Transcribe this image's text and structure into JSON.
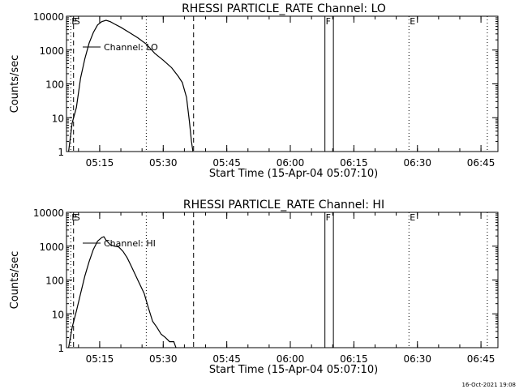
{
  "chart_data": [
    {
      "type": "line",
      "title": "RHESSI PARTICLE_RATE Channel: LO",
      "xlabel": "Start Time (15-Apr-04 05:07:10)",
      "ylabel": "Counts/sec",
      "y_scale": "log",
      "ylim": [
        1,
        10000
      ],
      "xlim": [
        "05:07:10",
        "06:49:00"
      ],
      "x_tick_labels": [
        "05:15",
        "05:30",
        "05:45",
        "06:00",
        "06:15",
        "06:30",
        "06:45"
      ],
      "y_tick_labels": [
        "1",
        "10",
        "100",
        "1000",
        "10000"
      ],
      "legend": "Channel: LO",
      "legend_position": "top-left",
      "series": [
        {
          "name": "Channel: LO",
          "x": [
            "05:07:40",
            "05:08:30",
            "05:09:30",
            "05:10:30",
            "05:11:30",
            "05:12:30",
            "05:13:30",
            "05:14:30",
            "05:15:30",
            "05:16:30",
            "05:17:30",
            "05:18:30",
            "05:20:00",
            "05:22:00",
            "05:24:00",
            "05:26:00",
            "05:28:00",
            "05:30:00",
            "05:32:00",
            "05:33:30",
            "05:34:30",
            "05:35:30",
            "05:36:10",
            "05:36:40",
            "05:37:00"
          ],
          "y": [
            1,
            7,
            20,
            150,
            550,
            1600,
            3300,
            5500,
            6900,
            7600,
            6900,
            5900,
            4700,
            3300,
            2300,
            1500,
            800,
            500,
            300,
            170,
            110,
            40,
            8,
            2,
            1
          ]
        }
      ],
      "annotations": [
        {
          "label": "F",
          "x": "06:08:10",
          "style": "solid"
        },
        {
          "label": "E",
          "x": "06:28:00",
          "style": "dotted"
        },
        {
          "label": "E",
          "x": "05:08:10",
          "style": "dotted"
        },
        {
          "label": "S",
          "x": "05:08:50",
          "style": "dashed"
        }
      ],
      "vertical_lines": [
        {
          "x": "05:08:10",
          "style": "dotted"
        },
        {
          "x": "05:08:50",
          "style": "dashed"
        },
        {
          "x": "05:26:00",
          "style": "dotted"
        },
        {
          "x": "05:37:10",
          "style": "dashed"
        },
        {
          "x": "06:08:10",
          "style": "solid"
        },
        {
          "x": "06:10:10",
          "style": "solid"
        },
        {
          "x": "06:28:00",
          "style": "dotted"
        },
        {
          "x": "06:46:30",
          "style": "dotted"
        }
      ]
    },
    {
      "type": "line",
      "title": "RHESSI PARTICLE_RATE Channel: HI",
      "xlabel": "Start Time (15-Apr-04 05:07:10)",
      "ylabel": "Counts/sec",
      "y_scale": "log",
      "ylim": [
        1,
        10000
      ],
      "xlim": [
        "05:07:10",
        "06:49:00"
      ],
      "x_tick_labels": [
        "05:15",
        "05:30",
        "05:45",
        "06:00",
        "06:15",
        "06:30",
        "06:45"
      ],
      "y_tick_labels": [
        "1",
        "10",
        "100",
        "1000",
        "10000"
      ],
      "legend": "Channel: HI",
      "legend_position": "top-left",
      "series": [
        {
          "name": "Channel: HI",
          "x": [
            "05:07:40",
            "05:08:30",
            "05:09:30",
            "05:10:30",
            "05:11:30",
            "05:12:30",
            "05:13:30",
            "05:14:30",
            "05:15:30",
            "05:16:00",
            "05:16:30",
            "05:17:30",
            "05:18:30",
            "05:19:30",
            "05:20:30",
            "05:21:30",
            "05:22:30",
            "05:24:00",
            "05:25:30",
            "05:26:30",
            "05:27:30",
            "05:28:30",
            "05:29:30",
            "05:30:30",
            "05:31:30",
            "05:32:30",
            "05:33:00"
          ],
          "y": [
            1,
            4,
            12,
            40,
            130,
            350,
            800,
            1400,
            1800,
            1900,
            1500,
            1100,
            1000,
            950,
            700,
            450,
            250,
            100,
            40,
            15,
            6,
            4,
            2.5,
            2,
            1.5,
            1.5,
            1
          ]
        }
      ],
      "annotations": [
        {
          "label": "F",
          "x": "06:08:10",
          "style": "solid"
        },
        {
          "label": "E",
          "x": "06:28:00",
          "style": "dotted"
        },
        {
          "label": "E",
          "x": "05:08:10",
          "style": "dotted"
        },
        {
          "label": "S",
          "x": "05:08:50",
          "style": "dashed"
        }
      ],
      "vertical_lines": [
        {
          "x": "05:08:10",
          "style": "dotted"
        },
        {
          "x": "05:08:50",
          "style": "dashed"
        },
        {
          "x": "05:26:00",
          "style": "dotted"
        },
        {
          "x": "05:37:10",
          "style": "dashed"
        },
        {
          "x": "06:08:10",
          "style": "solid"
        },
        {
          "x": "06:10:10",
          "style": "solid"
        },
        {
          "x": "06:28:00",
          "style": "dotted"
        },
        {
          "x": "06:46:30",
          "style": "dotted"
        }
      ]
    }
  ],
  "footer": {
    "timestamp": "16-Oct-2021 19:08"
  }
}
